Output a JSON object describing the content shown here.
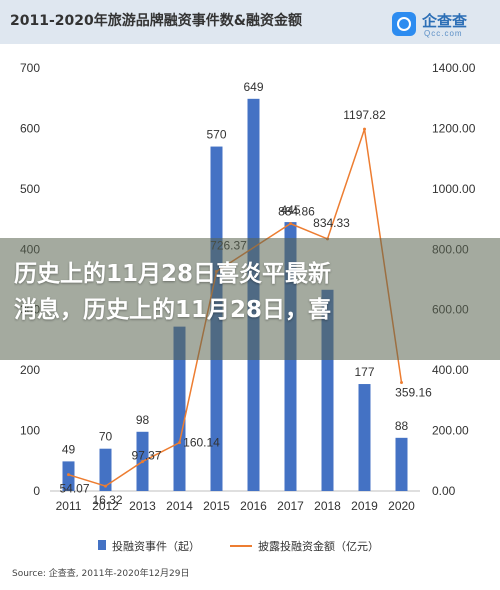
{
  "header": {
    "title": "2011-2020年旅游品牌融资事件数&融资金额",
    "logo_name": "企查查",
    "logo_domain": "Qcc.com"
  },
  "overlay": {
    "line1": "历史上的11月28日喜炎平最新",
    "line2": "消息，历史上的11月28日，喜"
  },
  "legend": {
    "bar_label": "投融资事件（起）",
    "line_label": "披露投融资金额（亿元）"
  },
  "source": "Source: 企查查, 2011年-2020年12月29日",
  "chart_data": {
    "type": "bar",
    "title": "2011-2020年旅游品牌融资事件数&融资金额",
    "categories": [
      "2011",
      "2012",
      "2013",
      "2014",
      "2015",
      "2016",
      "2017",
      "2018",
      "2019",
      "2020"
    ],
    "series": [
      {
        "name": "投融资事件（起）",
        "type": "bar",
        "axis": "left",
        "values": [
          49,
          70,
          98,
          272,
          570,
          649,
          445,
          333,
          177,
          88
        ],
        "labels": [
          "49",
          "70",
          "98",
          "",
          "570",
          "649",
          "445",
          "",
          "177",
          "88"
        ],
        "color": "#4472c4"
      },
      {
        "name": "披露投融资金额（亿元）",
        "type": "line",
        "axis": "right",
        "values": [
          54.07,
          16.32,
          97.37,
          160.14,
          726.37,
          null,
          884.86,
          834.33,
          1197.82,
          359.16
        ],
        "labels": [
          "54.07",
          "16.32",
          "97.37",
          "160.14",
          "726.37",
          "",
          "884.86",
          "834.33",
          "1197.82",
          "359.16"
        ],
        "color": "#ed7d31"
      }
    ],
    "y_left": {
      "min": 0,
      "max": 700,
      "ticks": [
        "0",
        "100",
        "200",
        "300",
        "400",
        "500",
        "600",
        "700"
      ]
    },
    "y_right": {
      "min": 0,
      "max": 1400,
      "ticks": [
        "0.00",
        "200.00",
        "400.00",
        "600.00",
        "800.00",
        "1000.00",
        "1200.00",
        "1400.00"
      ]
    },
    "grid": false,
    "legend_position": "bottom"
  }
}
